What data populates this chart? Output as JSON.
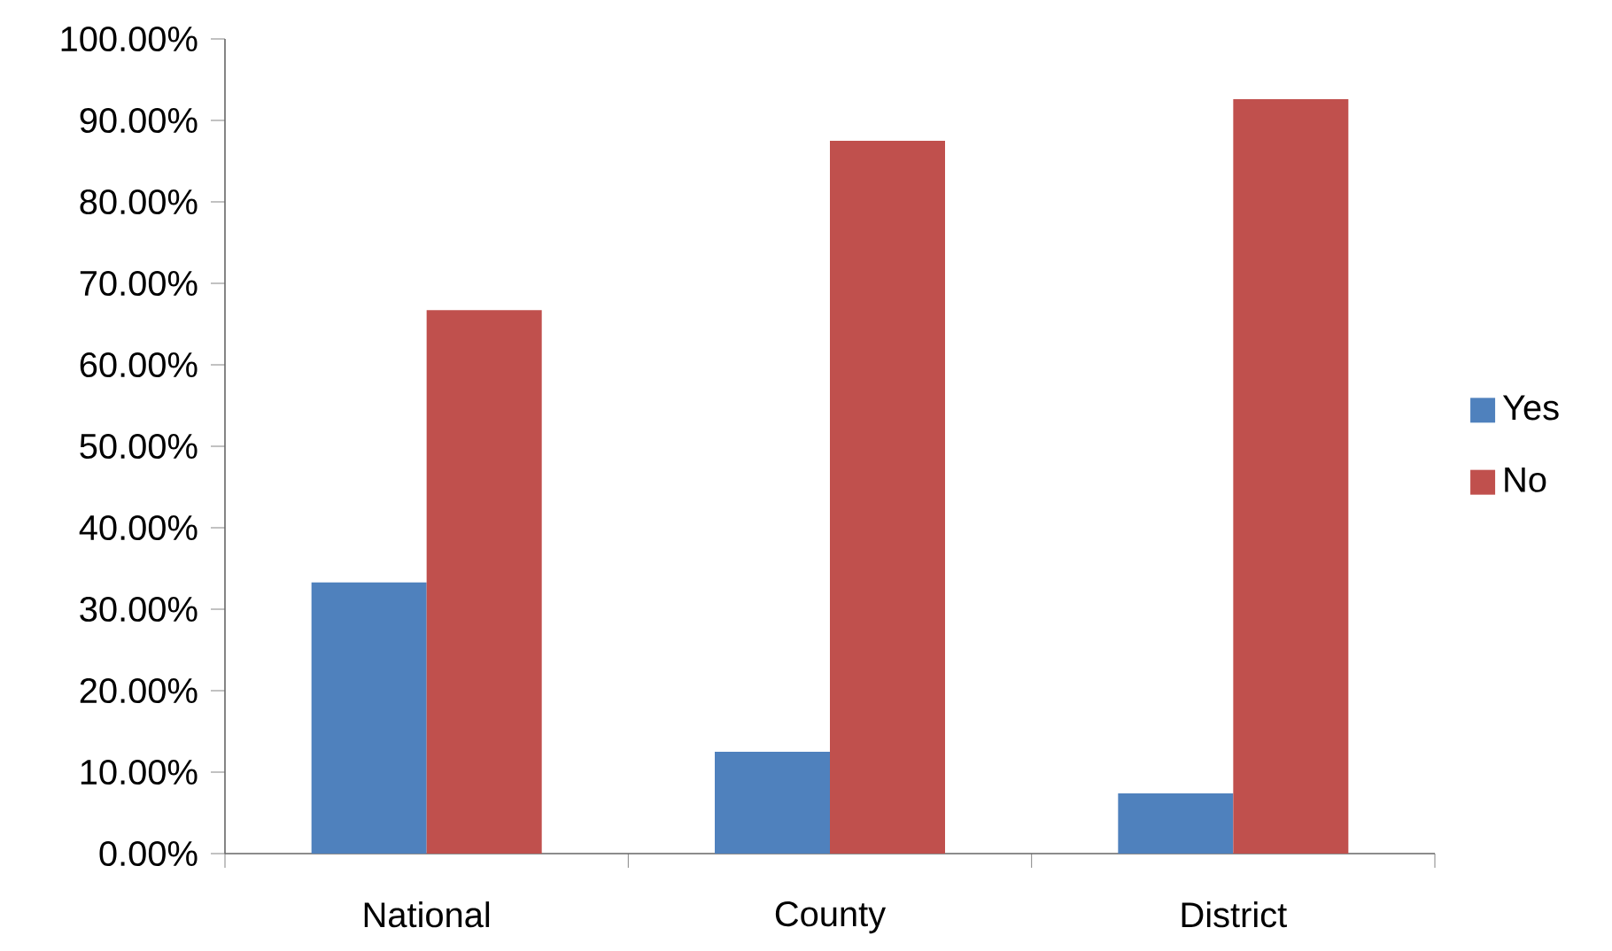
{
  "chart_data": {
    "type": "bar",
    "categories": [
      "National",
      "County",
      "District"
    ],
    "series": [
      {
        "name": "Yes",
        "color": "#4f81bd",
        "values": [
          33.3,
          12.5,
          7.4
        ]
      },
      {
        "name": "No",
        "color": "#c0504d",
        "values": [
          66.7,
          87.5,
          92.6
        ]
      }
    ],
    "ylim": [
      0,
      100
    ],
    "yticks": [
      {
        "value": 0,
        "label": "0.00%"
      },
      {
        "value": 10,
        "label": "10.00%"
      },
      {
        "value": 20,
        "label": "20.00%"
      },
      {
        "value": 30,
        "label": "30.00%"
      },
      {
        "value": 40,
        "label": "40.00%"
      },
      {
        "value": 50,
        "label": "50.00%"
      },
      {
        "value": 60,
        "label": "60.00%"
      },
      {
        "value": 70,
        "label": "70.00%"
      },
      {
        "value": 80,
        "label": "80.00%"
      },
      {
        "value": 90,
        "label": "90.00%"
      },
      {
        "value": 100,
        "label": "100.00%"
      }
    ],
    "grid": false,
    "legend": "right"
  }
}
